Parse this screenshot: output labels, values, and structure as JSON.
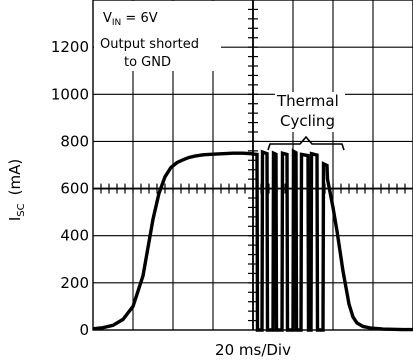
{
  "chart_data": {
    "type": "line",
    "xlabel": "20 ms/Div",
    "ylabel_main": "I",
    "ylabel_sub": "SC",
    "ylabel_unit": "(mA)",
    "ylim": [
      0,
      1400
    ],
    "xlim": [
      0,
      320
    ],
    "x_unit": "ms",
    "grid": true,
    "y_ticks": [
      "0",
      "200",
      "400",
      "600",
      "800",
      "1000",
      "1200"
    ],
    "y_tick_values": [
      0,
      200,
      400,
      600,
      800,
      1000,
      1200
    ],
    "annotations": {
      "vin_main": "V",
      "vin_sub": "IN",
      "vin_value": " = 6V",
      "output_line1": "Output shorted",
      "output_line2": "to GND",
      "thermal_line1": "Thermal",
      "thermal_line2": "Cycling"
    },
    "series": [
      {
        "x": [
          0,
          10,
          20,
          30,
          40,
          50,
          60,
          66,
          72,
          78,
          84,
          90,
          96,
          102,
          110,
          120,
          130,
          140,
          150,
          158,
          164,
          164.5,
          169,
          169.5,
          174,
          174.5,
          180,
          180.5,
          183,
          183.5,
          189,
          189.5,
          194,
          194.5,
          200,
          200.5,
          203,
          203.5,
          208,
          208.5,
          215,
          215.5,
          218,
          218.5,
          224,
          224.5,
          230,
          230.5,
          234,
          234.5,
          240,
          244,
          250,
          256,
          260,
          264,
          270,
          278,
          290,
          300,
          310,
          320
        ],
        "y": [
          5,
          10,
          20,
          45,
          100,
          230,
          470,
          580,
          650,
          690,
          710,
          722,
          732,
          738,
          743,
          746,
          748,
          750,
          750,
          748,
          745,
          0,
          0,
          755,
          748,
          0,
          0,
          750,
          745,
          0,
          0,
          750,
          745,
          0,
          0,
          758,
          752,
          0,
          0,
          745,
          740,
          0,
          0,
          748,
          742,
          0,
          0,
          705,
          698,
          640,
          520,
          420,
          250,
          110,
          55,
          30,
          15,
          8,
          4,
          3,
          2,
          2
        ]
      }
    ]
  }
}
